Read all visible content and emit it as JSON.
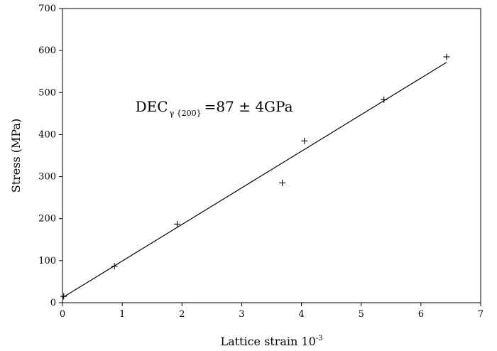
{
  "chart_data": {
    "type": "scatter",
    "xlabel": "Lattice strain 10",
    "xlabel_superscript": "-3",
    "ylabel": "Stress (MPa)",
    "xlim": [
      0,
      7
    ],
    "ylim": [
      0,
      700
    ],
    "x_ticks": [
      0,
      1,
      2,
      3,
      4,
      5,
      6,
      7
    ],
    "y_ticks": [
      0,
      100,
      200,
      300,
      400,
      500,
      600,
      700
    ],
    "grid": false,
    "legend": "none",
    "series": [
      {
        "marker": "plus",
        "color": "#000000",
        "x": [
          0.02,
          0.87,
          1.92,
          3.68,
          4.05,
          5.38,
          6.43
        ],
        "y": [
          15,
          87,
          187,
          285,
          385,
          483,
          585
        ]
      }
    ],
    "fit_line": {
      "x": [
        0.0,
        6.43
      ],
      "y": [
        12,
        572
      ],
      "color": "#000000"
    },
    "annotation": {
      "main": "DEC",
      "subscript": "γ {200}",
      "rest": "=87 ± 4GPa",
      "anchor_x": 1.22,
      "anchor_y": 455
    }
  }
}
